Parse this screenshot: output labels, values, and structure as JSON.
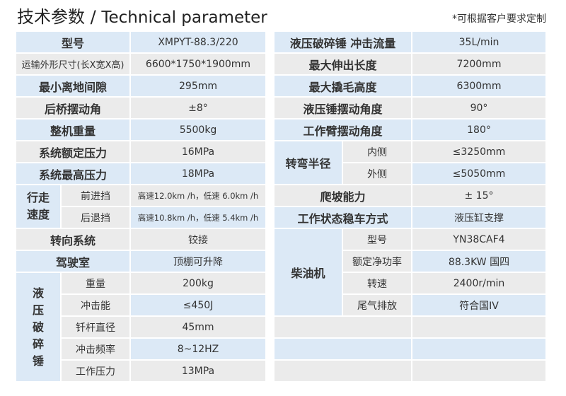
{
  "header": {
    "title_cn": "技术参数",
    "separator": "/",
    "title_en": "Technical parameter",
    "note": "*可根据客户要求定制"
  },
  "left": {
    "model": {
      "label": "型号",
      "value": "XMPYT-88.3/220"
    },
    "dims": {
      "label": "运输外形尺寸(长X宽X高)",
      "value": "6600*1750*1900mm"
    },
    "clearance": {
      "label": "最小离地间隙",
      "value": "295mm"
    },
    "axle": {
      "label": "后桥摆动角",
      "value": "±8°"
    },
    "weight": {
      "label": "整机重量",
      "value": "5500kg"
    },
    "rated_pressure": {
      "label": "系统额定压力",
      "value": "16MPa"
    },
    "max_pressure": {
      "label": "系统最高压力",
      "value": "18MPa"
    },
    "speed": {
      "label": "行走速度",
      "forward": {
        "label": "前进挡",
        "value": "高速12.0km /h，低速 6.0km /h"
      },
      "reverse": {
        "label": "后退挡",
        "value": "高速10.8km /h，低速 5.4km /h"
      }
    },
    "steering": {
      "label": "转向系统",
      "value": "铰接"
    },
    "cab": {
      "label": "驾驶室",
      "value": "顶棚可升降"
    },
    "hammer": {
      "label": "液压破碎锤",
      "items": [
        {
          "label": "重量",
          "value": "200kg"
        },
        {
          "label": "冲击能",
          "value": "≤450J"
        },
        {
          "label": "钎杆直径",
          "value": "45mm"
        },
        {
          "label": "冲击频率",
          "value": "8~12HZ"
        },
        {
          "label": "工作压力",
          "value": "13MPa"
        }
      ]
    }
  },
  "right": {
    "flow": {
      "label": "液压破碎锤 冲击流量",
      "value": "35L/min"
    },
    "reach": {
      "label": "最大伸出长度",
      "value": "7200mm"
    },
    "lift": {
      "label": "最大撬毛高度",
      "value": "6300mm"
    },
    "hammer_swing": {
      "label": "液压锤摆动角度",
      "value": "90°"
    },
    "arm_swing": {
      "label": "工作臂摆动角度",
      "value": "180°"
    },
    "turning": {
      "label": "转弯半径",
      "inner": {
        "label": "内侧",
        "value": "≤3250mm"
      },
      "outer": {
        "label": "外侧",
        "value": "≤5050mm"
      }
    },
    "climb": {
      "label": "爬坡能力",
      "value": "± 15°"
    },
    "stabilize": {
      "label": "工作状态稳车方式",
      "value": "液压缸支撑"
    },
    "engine": {
      "label": "柴油机",
      "items": [
        {
          "label": "型号",
          "value": "YN38CAF4"
        },
        {
          "label": "额定净功率",
          "value": "88.3KW 国四"
        },
        {
          "label": "转速",
          "value": "2400r/min"
        },
        {
          "label": "尾气排放",
          "value": "符合国IV"
        }
      ]
    }
  },
  "colors": {
    "blue_row": "#dce9f6",
    "gray_row": "#ebebeb"
  }
}
